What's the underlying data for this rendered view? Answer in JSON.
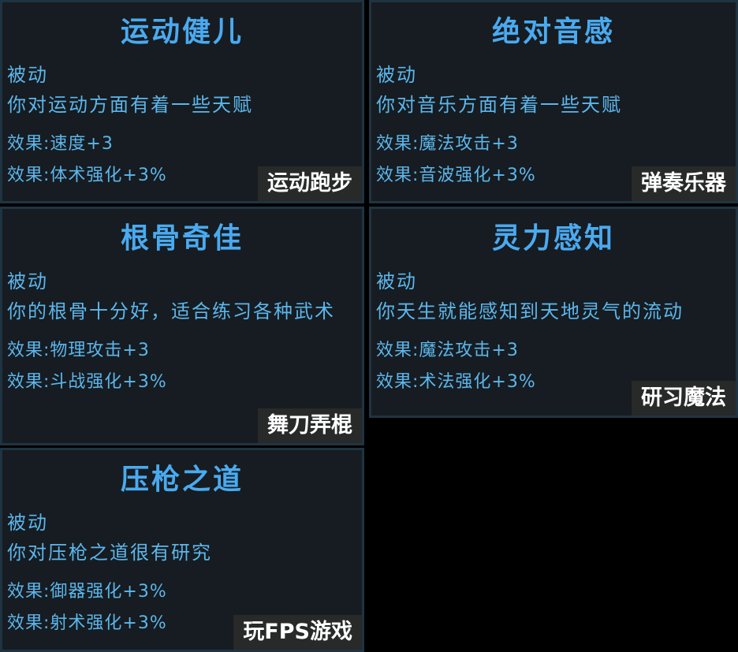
{
  "cards": [
    {
      "title": "运动健儿",
      "type": "被动",
      "description": "你对运动方面有着一些天赋",
      "effects": [
        "效果:速度+3",
        "效果:体术强化+3%"
      ],
      "tag": "运动跑步"
    },
    {
      "title": "绝对音感",
      "type": "被动",
      "description": "你对音乐方面有着一些天赋",
      "effects": [
        "效果:魔法攻击+3",
        "效果:音波强化+3%"
      ],
      "tag": "弹奏乐器"
    },
    {
      "title": "根骨奇佳",
      "type": "被动",
      "description": "你的根骨十分好，适合练习各种武术",
      "effects": [
        "效果:物理攻击+3",
        "效果:斗战强化+3%"
      ],
      "tag": "舞刀弄棍"
    },
    {
      "title": "灵力感知",
      "type": "被动",
      "description": "你天生就能感知到天地灵气的流动",
      "effects": [
        "效果:魔法攻击+3",
        "效果:术法强化+3%"
      ],
      "tag": "研习魔法"
    },
    {
      "title": "压枪之道",
      "type": "被动",
      "description": "你对压枪之道很有研究",
      "effects": [
        "效果:御器强化+3%",
        "效果:射术强化+3%"
      ],
      "tag": "玩FPS游戏"
    }
  ]
}
